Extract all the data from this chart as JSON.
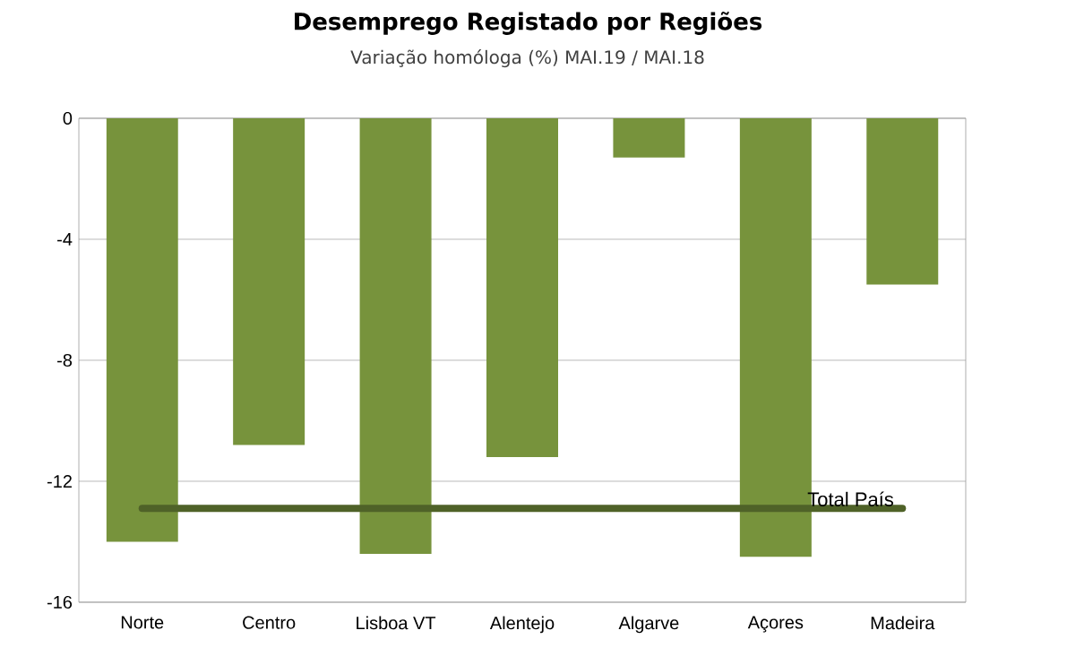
{
  "chart_data": {
    "type": "bar",
    "title": "Desemprego Registado por Regiões",
    "subtitle": "Variação homóloga (%)   MAI.19 / MAI.18",
    "categories": [
      "Norte",
      "Centro",
      "Lisboa VT",
      "Alentejo",
      "Algarve",
      "Açores",
      "Madeira"
    ],
    "values": [
      -14.0,
      -10.8,
      -14.4,
      -11.2,
      -1.3,
      -14.5,
      -5.5
    ],
    "color": "#77933c",
    "ylim": [
      -16,
      0
    ],
    "yticks": [
      -16,
      -12,
      -8,
      -4,
      0
    ],
    "grid": "y",
    "ref_lines": [
      {
        "axis": "y",
        "value": -12.9,
        "label": "Total  País",
        "color": "#4f6228"
      }
    ]
  }
}
